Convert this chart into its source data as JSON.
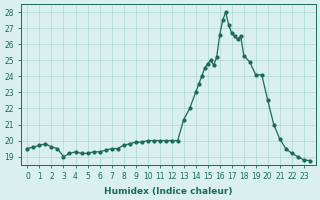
{
  "x": [
    0,
    0.5,
    1,
    1.5,
    2,
    2.5,
    3,
    3.5,
    4,
    4.5,
    5,
    5.5,
    6,
    6.5,
    7,
    7.5,
    8,
    8.5,
    9,
    9.5,
    10,
    10.5,
    11,
    11.5,
    12,
    12.5,
    13,
    13.5,
    14,
    14.25,
    14.5,
    14.75,
    15,
    15.25,
    15.5,
    15.75,
    16,
    16.25,
    16.5,
    16.75,
    17,
    17.25,
    17.5,
    17.75,
    18,
    18.5,
    19,
    19.5,
    20,
    20.5,
    21,
    21.5,
    22,
    22.5,
    23,
    23.5
  ],
  "y": [
    19.5,
    19.6,
    19.7,
    19.8,
    19.6,
    19.5,
    19.0,
    19.2,
    19.3,
    19.2,
    19.2,
    19.3,
    19.3,
    19.4,
    19.5,
    19.5,
    19.7,
    19.8,
    19.9,
    19.9,
    20.0,
    20.0,
    20.0,
    20.0,
    20.0,
    20.0,
    21.3,
    22.0,
    23.0,
    23.5,
    24.0,
    24.5,
    24.8,
    25.0,
    24.7,
    25.2,
    26.6,
    27.5,
    28.0,
    27.2,
    26.7,
    26.5,
    26.3,
    26.5,
    25.3,
    24.9,
    24.1,
    24.1,
    22.5,
    21.0,
    20.1,
    19.5,
    19.2,
    19.0,
    18.8,
    18.75
  ],
  "line_color": "#1a6b5a",
  "marker_color": "#1a6b5a",
  "bg_color": "#d9f0ee",
  "grid_color": "#b0d8d4",
  "xlabel": "Humidex (Indice chaleur)",
  "ylabel_ticks": [
    19,
    20,
    21,
    22,
    23,
    24,
    25,
    26,
    27,
    28
  ],
  "xtick_labels": [
    "0",
    "1",
    "2",
    "3",
    "4",
    "5",
    "6",
    "7",
    "8",
    "9",
    "10",
    "11",
    "12",
    "13",
    "14",
    "15",
    "16",
    "17",
    "18",
    "19",
    "20",
    "21",
    "22",
    "23"
  ],
  "ylim": [
    18.5,
    28.5
  ],
  "xlim": [
    -0.5,
    24.0
  ]
}
